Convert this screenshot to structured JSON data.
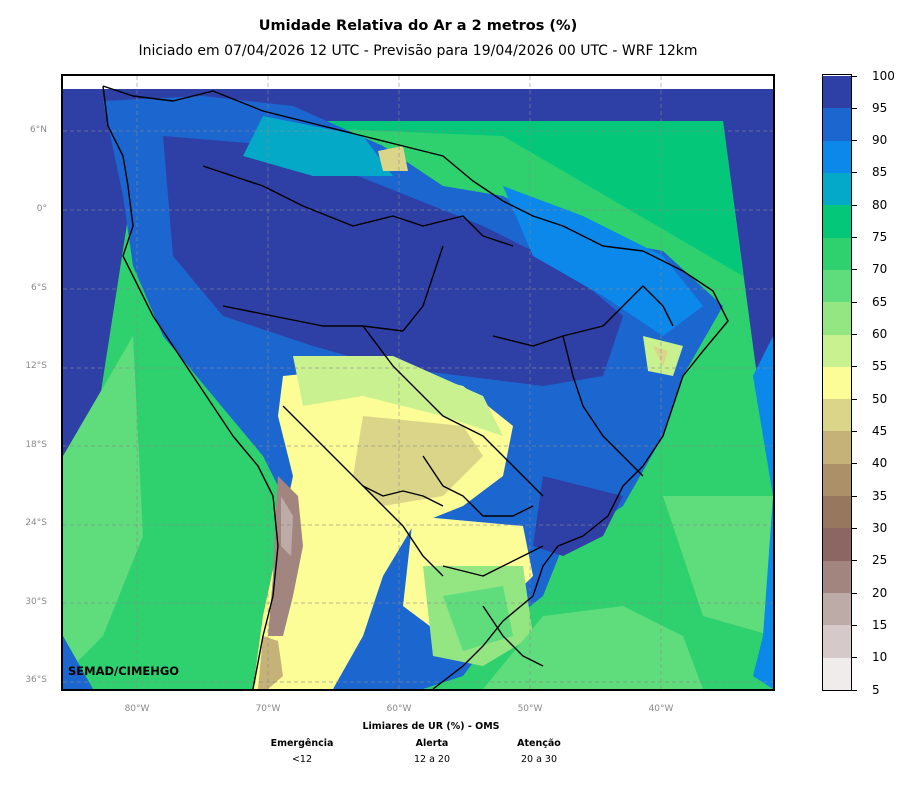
{
  "title": "Umidade Relativa do Ar a 2 metros (%)",
  "subtitle": "Iniciado em 07/04/2026 12 UTC - Previsão para 19/04/2026 00 UTC - WRF 12km",
  "credit": "SEMAD/CIMEHGO",
  "lat_ticks": [
    {
      "label": "6°N",
      "value": 6
    },
    {
      "label": "0°",
      "value": 0
    },
    {
      "label": "6°S",
      "value": -6
    },
    {
      "label": "12°S",
      "value": -12
    },
    {
      "label": "18°S",
      "value": -18
    },
    {
      "label": "24°S",
      "value": -24
    },
    {
      "label": "30°S",
      "value": -30
    },
    {
      "label": "36°S",
      "value": -36
    }
  ],
  "lon_ticks": [
    {
      "label": "80°W",
      "value": -80
    },
    {
      "label": "70°W",
      "value": -70
    },
    {
      "label": "60°W",
      "value": -60
    },
    {
      "label": "50°W",
      "value": -50
    },
    {
      "label": "40°W",
      "value": -40
    }
  ],
  "colorbar": {
    "levels": [
      5,
      10,
      15,
      20,
      25,
      30,
      35,
      40,
      45,
      50,
      55,
      60,
      65,
      70,
      75,
      80,
      85,
      90,
      95,
      100
    ],
    "colors": [
      "#f1ecec",
      "#d6c9c9",
      "#bcaba7",
      "#a38580",
      "#8b6662",
      "#97785f",
      "#ac9068",
      "#c4b279",
      "#dbd58a",
      "#fdfd98",
      "#c9f18f",
      "#93e682",
      "#5fdc7c",
      "#2ed16e",
      "#04c779",
      "#03a9c7",
      "#0b88ea",
      "#1c66d0",
      "#2e3fa5"
    ]
  },
  "legend": {
    "title": "Limiares de UR (%) - OMS",
    "items": [
      {
        "label": "Emergência",
        "value": "<12"
      },
      {
        "label": "Alerta",
        "value": "12 a 20"
      },
      {
        "label": "Atenção",
        "value": "20 a 30"
      }
    ]
  }
}
